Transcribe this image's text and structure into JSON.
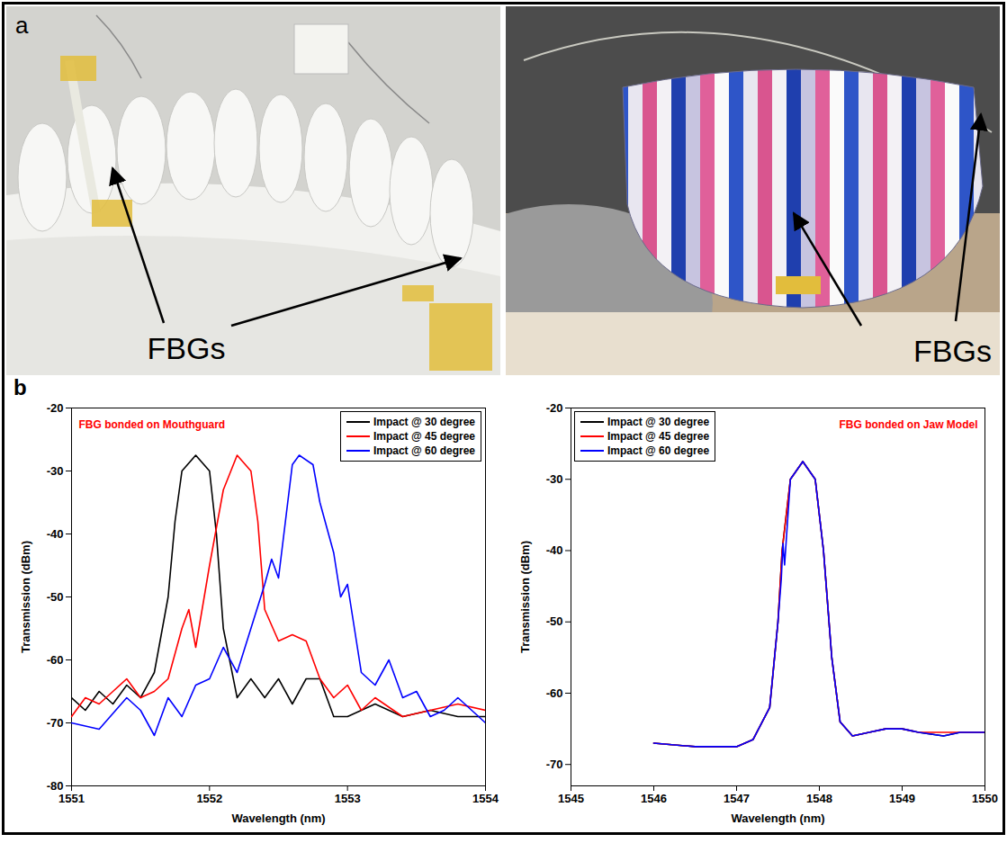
{
  "figure": {
    "panel_labels": [
      "a",
      "b"
    ],
    "photo_annotations": [
      "FBGs",
      "FBGs"
    ]
  },
  "chart_data": [
    {
      "type": "line",
      "annotation": "FBG bonded on Mouthguard",
      "xlabel": "Wavelength (nm)",
      "ylabel": "Transmission (dBm)",
      "xlim": [
        1551,
        1554
      ],
      "xticks": [
        1551,
        1552,
        1553,
        1554
      ],
      "ylim": [
        -80,
        -20
      ],
      "yticks": [
        -80,
        -70,
        -60,
        -50,
        -40,
        -30,
        -20
      ],
      "legend": "upper right",
      "series": [
        {
          "name": "Impact @ 30 degree",
          "color": "black",
          "x": [
            1551.0,
            1551.1,
            1551.2,
            1551.3,
            1551.4,
            1551.5,
            1551.6,
            1551.7,
            1551.75,
            1551.8,
            1551.9,
            1552.0,
            1552.05,
            1552.1,
            1552.2,
            1552.3,
            1552.4,
            1552.5,
            1552.6,
            1552.7,
            1552.8,
            1552.9,
            1553.0,
            1553.2,
            1553.4,
            1553.6,
            1553.8,
            1554.0
          ],
          "values": [
            -66,
            -68,
            -65,
            -67,
            -64,
            -66,
            -62,
            -50,
            -38,
            -30,
            -27.5,
            -30,
            -40,
            -55,
            -66,
            -63,
            -66,
            -63,
            -67,
            -63,
            -63,
            -69,
            -69,
            -67,
            -69,
            -68,
            -69,
            -69
          ]
        },
        {
          "name": "Impact @ 45 degree",
          "color": "red",
          "x": [
            1551.0,
            1551.1,
            1551.2,
            1551.3,
            1551.4,
            1551.5,
            1551.6,
            1551.7,
            1551.8,
            1551.85,
            1551.9,
            1552.0,
            1552.1,
            1552.2,
            1552.3,
            1552.35,
            1552.4,
            1552.5,
            1552.6,
            1552.7,
            1552.8,
            1552.9,
            1553.0,
            1553.1,
            1553.2,
            1553.4,
            1553.6,
            1553.8,
            1554.0
          ],
          "values": [
            -69,
            -66,
            -67,
            -65,
            -63,
            -66,
            -65,
            -63,
            -55,
            -52,
            -58,
            -45,
            -33,
            -27.5,
            -30,
            -38,
            -52,
            -57,
            -56,
            -57,
            -63,
            -66,
            -64,
            -68,
            -66,
            -69,
            -68,
            -67,
            -68
          ]
        },
        {
          "name": "Impact @ 60 degree",
          "color": "blue",
          "x": [
            1551.0,
            1551.2,
            1551.4,
            1551.5,
            1551.6,
            1551.7,
            1551.8,
            1551.9,
            1552.0,
            1552.1,
            1552.2,
            1552.3,
            1552.4,
            1552.45,
            1552.5,
            1552.55,
            1552.6,
            1552.65,
            1552.75,
            1552.8,
            1552.9,
            1552.95,
            1553.0,
            1553.1,
            1553.2,
            1553.3,
            1553.4,
            1553.5,
            1553.6,
            1553.7,
            1553.8,
            1553.9,
            1554.0
          ],
          "values": [
            -70,
            -71,
            -66,
            -68,
            -72,
            -66,
            -69,
            -64,
            -63,
            -58,
            -62,
            -55,
            -48,
            -44,
            -47,
            -38,
            -29,
            -27.5,
            -29,
            -35,
            -43,
            -50,
            -48,
            -62,
            -64,
            -60,
            -66,
            -65,
            -69,
            -68,
            -66,
            -68,
            -70
          ]
        }
      ]
    },
    {
      "type": "line",
      "annotation": "FBG bonded on Jaw Model",
      "xlabel": "Wavelength (nm)",
      "ylabel": "Transmission (dBm)",
      "xlim": [
        1545,
        1550
      ],
      "xticks": [
        1545,
        1546,
        1547,
        1548,
        1549,
        1550
      ],
      "ylim": [
        -73,
        -20
      ],
      "yticks": [
        -70,
        -60,
        -50,
        -40,
        -30,
        -20
      ],
      "legend": "upper left",
      "series": [
        {
          "name": "Impact @ 30 degree",
          "color": "black",
          "x": [
            1546.0,
            1546.5,
            1547.0,
            1547.2,
            1547.4,
            1547.5,
            1547.55,
            1547.65,
            1547.8,
            1547.95,
            1548.05,
            1548.15,
            1548.25,
            1548.4,
            1548.6,
            1548.8,
            1549.0,
            1549.2,
            1549.5,
            1549.7,
            1550.0
          ],
          "values": [
            -67,
            -67.5,
            -67.5,
            -66.5,
            -62,
            -50,
            -40,
            -30,
            -27.5,
            -30,
            -40,
            -55,
            -64,
            -66,
            -65.5,
            -65,
            -65,
            -65.5,
            -66,
            -65.5,
            -65.5
          ]
        },
        {
          "name": "Impact @ 45 degree",
          "color": "red",
          "x": [
            1546.0,
            1546.5,
            1547.0,
            1547.2,
            1547.4,
            1547.5,
            1547.55,
            1547.65,
            1547.8,
            1547.95,
            1548.05,
            1548.15,
            1548.25,
            1548.4,
            1548.6,
            1548.8,
            1549.0,
            1549.2,
            1549.5,
            1549.7,
            1550.0
          ],
          "values": [
            -67,
            -67.5,
            -67.5,
            -66.5,
            -62,
            -50,
            -40,
            -30,
            -27.5,
            -30,
            -40,
            -55,
            -64,
            -66,
            -65.5,
            -65,
            -65,
            -65.5,
            -65.5,
            -65.5,
            -65.5
          ]
        },
        {
          "name": "Impact @ 60 degree",
          "color": "blue",
          "x": [
            1546.0,
            1546.5,
            1547.0,
            1547.2,
            1547.4,
            1547.5,
            1547.54,
            1547.56,
            1547.58,
            1547.65,
            1547.8,
            1547.95,
            1548.05,
            1548.15,
            1548.25,
            1548.4,
            1548.6,
            1548.8,
            1549.0,
            1549.2,
            1549.5,
            1549.7,
            1550.0
          ],
          "values": [
            -67,
            -67.5,
            -67.5,
            -66.5,
            -62,
            -50,
            -44,
            -39,
            -42,
            -30,
            -27.5,
            -30,
            -40,
            -55,
            -64,
            -66,
            -65.5,
            -65,
            -65,
            -65.5,
            -66,
            -65.5,
            -65.5
          ]
        }
      ]
    }
  ]
}
